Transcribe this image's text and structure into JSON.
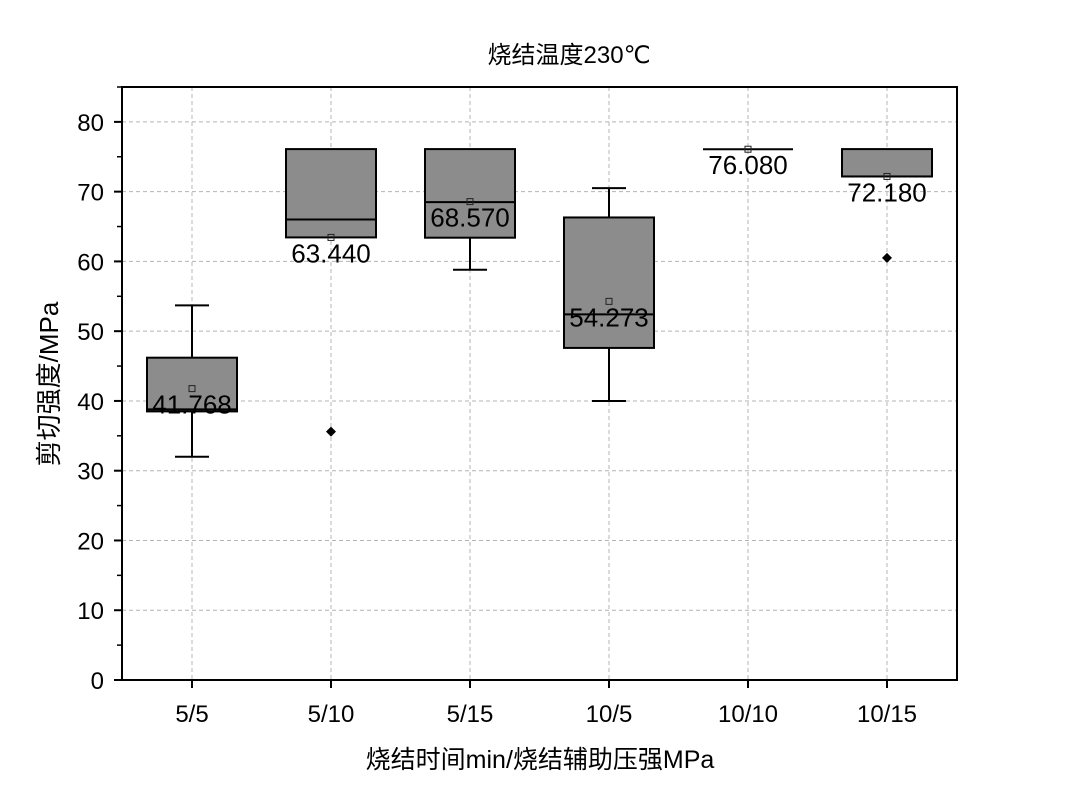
{
  "chart_data": {
    "type": "box",
    "title": "烧结温度230℃",
    "xlabel": "烧结时间min/烧结辅助压强MPa",
    "ylabel": "剪切强度/MPa",
    "ylim": [
      0,
      85
    ],
    "yticks": [
      "0",
      "10",
      "20",
      "30",
      "40",
      "50",
      "60",
      "70",
      "80"
    ],
    "grid": true,
    "colors": {
      "box_fill": "#8c8c8c",
      "box_stroke": "#000000",
      "grid": "#b4b4b4"
    },
    "categories": [
      "5/5",
      "5/10",
      "5/15",
      "10/5",
      "10/10",
      "10/15"
    ],
    "series": [
      {
        "name": "5/5",
        "whisker_low": 32.0,
        "q1": 38.5,
        "median": 38.8,
        "q3": 46.2,
        "whisker_high": 53.7,
        "mean": 41.768,
        "mean_label": "41.768",
        "outliers": []
      },
      {
        "name": "5/10",
        "whisker_low": 63.44,
        "q1": 63.44,
        "median": 66.0,
        "q3": 76.1,
        "whisker_high": 76.1,
        "mean": 63.44,
        "mean_label": "63.440",
        "outliers": [
          35.6
        ]
      },
      {
        "name": "5/15",
        "whisker_low": 58.8,
        "q1": 63.4,
        "median": 68.5,
        "q3": 76.1,
        "whisker_high": 76.1,
        "mean": 68.57,
        "mean_label": "68.570",
        "outliers": []
      },
      {
        "name": "10/5",
        "whisker_low": 40.0,
        "q1": 47.6,
        "median": 52.4,
        "q3": 66.3,
        "whisker_high": 70.5,
        "mean": 54.273,
        "mean_label": "54.273",
        "outliers": []
      },
      {
        "name": "10/10",
        "whisker_low": 76.08,
        "q1": 76.08,
        "median": 76.08,
        "q3": 76.08,
        "whisker_high": 76.08,
        "mean": 76.08,
        "mean_label": "76.080",
        "outliers": []
      },
      {
        "name": "10/15",
        "whisker_low": 72.18,
        "q1": 72.18,
        "median": 72.18,
        "q3": 76.1,
        "whisker_high": 76.1,
        "mean": 72.18,
        "mean_label": "72.180",
        "outliers": [
          60.5
        ]
      }
    ]
  }
}
